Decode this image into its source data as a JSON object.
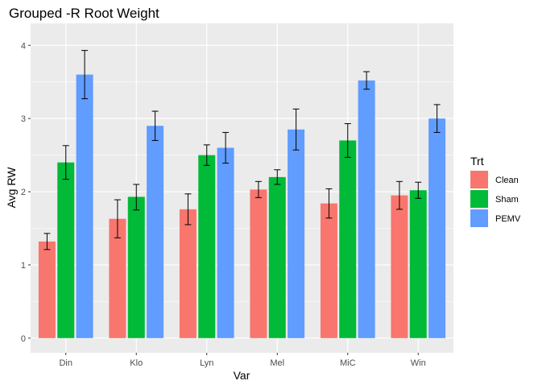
{
  "chart_data": {
    "type": "bar",
    "title": "Grouped -R Root Weight",
    "xlabel": "Var",
    "ylabel": "Avg RW",
    "categories": [
      "Din",
      "Klo",
      "Lyn",
      "Mel",
      "MiC",
      "Win"
    ],
    "yticks": [
      "0",
      "1",
      "2",
      "3",
      "4"
    ],
    "ylim": [
      -0.2,
      4.3
    ],
    "grid": true,
    "legend": {
      "title": "Trt",
      "placement": "right"
    },
    "series": [
      {
        "name": "Clean",
        "color": "#F8766D",
        "values": [
          1.32,
          1.63,
          1.76,
          2.03,
          1.84,
          1.95
        ],
        "err_low": [
          1.21,
          1.37,
          1.55,
          1.92,
          1.64,
          1.76
        ],
        "err_high": [
          1.43,
          1.89,
          1.97,
          2.14,
          2.04,
          2.14
        ]
      },
      {
        "name": "Sham",
        "color": "#00BA38",
        "values": [
          2.4,
          1.93,
          2.5,
          2.2,
          2.7,
          2.02
        ],
        "err_low": [
          2.17,
          1.75,
          2.36,
          2.1,
          2.47,
          1.91
        ],
        "err_high": [
          2.63,
          2.1,
          2.64,
          2.3,
          2.93,
          2.13
        ]
      },
      {
        "name": "PEMV",
        "color": "#619CFF",
        "values": [
          3.6,
          2.9,
          2.6,
          2.85,
          3.52,
          3.0
        ],
        "err_low": [
          3.27,
          2.7,
          2.39,
          2.57,
          3.4,
          2.81
        ],
        "err_high": [
          3.93,
          3.1,
          2.81,
          3.13,
          3.64,
          3.19
        ]
      }
    ]
  }
}
